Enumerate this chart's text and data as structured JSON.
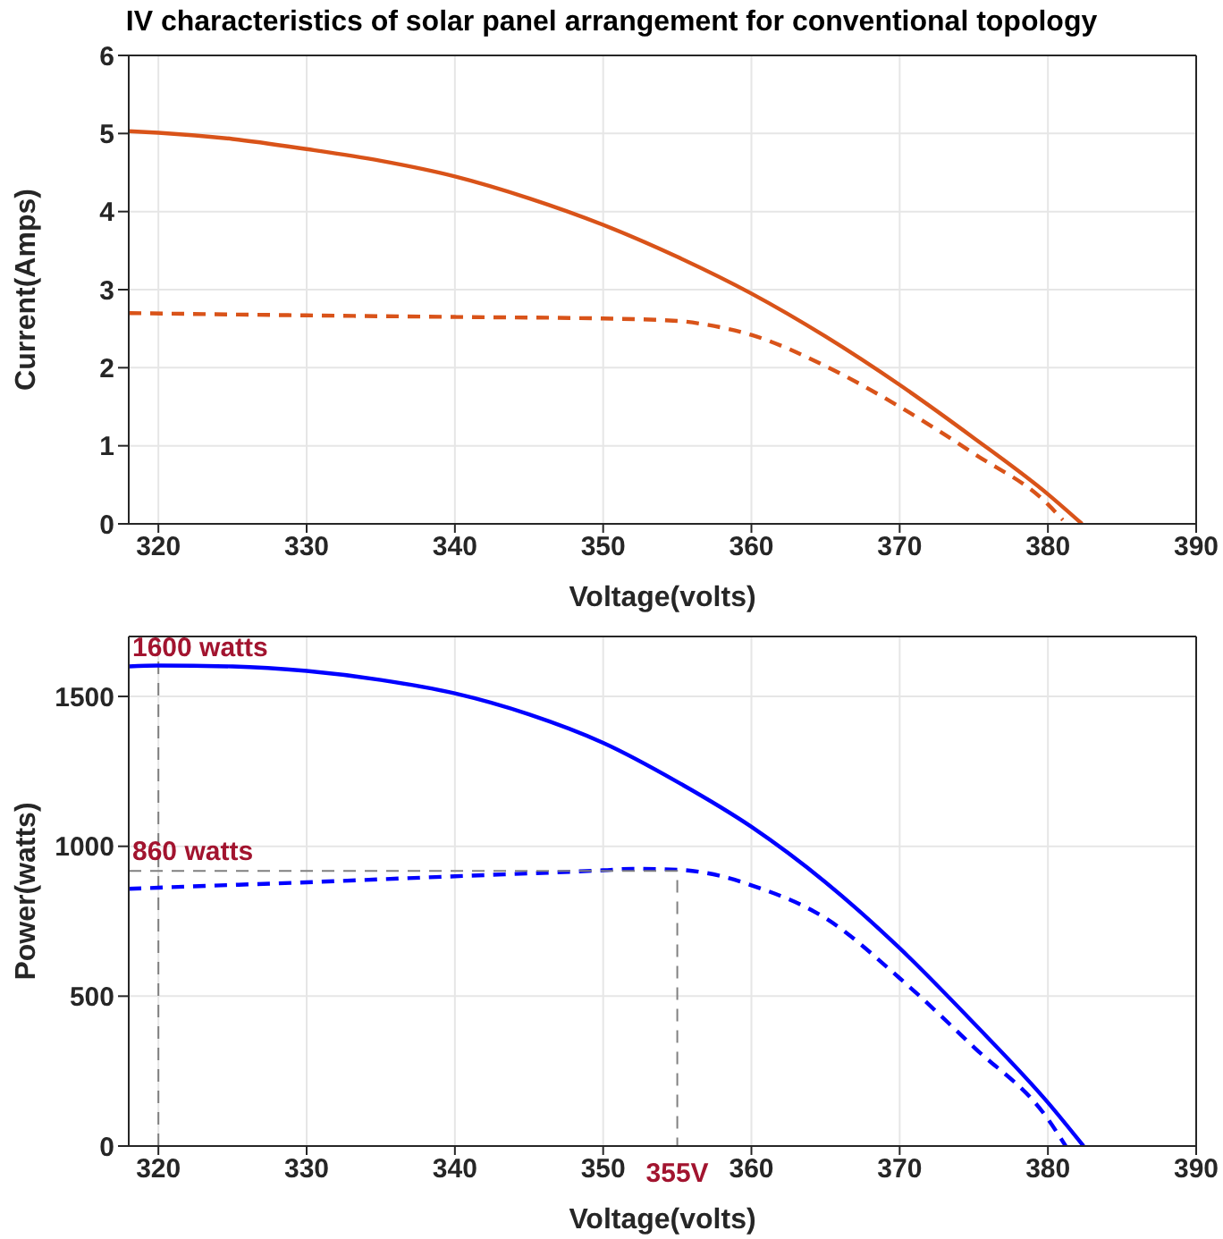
{
  "chart_data": [
    {
      "type": "line",
      "title": "IV characteristics of solar panel arrangement for conventional topology",
      "xlabel": "Voltage(volts)",
      "ylabel": "Current(Amps)",
      "xlim": [
        318,
        390
      ],
      "xticks": [
        320,
        330,
        340,
        350,
        360,
        370,
        380,
        390
      ],
      "ylim": [
        0,
        6
      ],
      "yticks": [
        0,
        1,
        2,
        3,
        4,
        5,
        6
      ],
      "grid": true,
      "series": [
        {
          "color": "#d95319",
          "line_style": "solid",
          "x": [
            318,
            320,
            325,
            330,
            335,
            340,
            345,
            350,
            355,
            360,
            365,
            370,
            375,
            380,
            382.3
          ],
          "values": [
            5.03,
            5.01,
            4.93,
            4.8,
            4.65,
            4.45,
            4.17,
            3.83,
            3.42,
            2.95,
            2.4,
            1.78,
            1.1,
            0.38,
            0
          ]
        },
        {
          "color": "#d95319",
          "line_style": "dashed",
          "x": [
            318,
            330,
            340,
            350,
            355,
            357,
            360,
            365,
            370,
            375,
            380,
            381
          ],
          "values": [
            2.7,
            2.67,
            2.65,
            2.63,
            2.6,
            2.55,
            2.42,
            2.02,
            1.5,
            0.9,
            0.25,
            0.05
          ]
        }
      ]
    },
    {
      "type": "line",
      "xlabel": "Voltage(volts)",
      "ylabel": "Power(watts)",
      "xlim": [
        318,
        390
      ],
      "xticks": [
        320,
        330,
        340,
        350,
        360,
        370,
        380,
        390
      ],
      "ylim": [
        0,
        1700
      ],
      "yticks": [
        0,
        500,
        1000,
        1500
      ],
      "grid": true,
      "series": [
        {
          "color": "#0000ff",
          "line_style": "solid",
          "x": [
            318,
            320,
            325,
            330,
            335,
            340,
            345,
            350,
            355,
            360,
            365,
            370,
            375,
            380,
            382.4
          ],
          "values": [
            1600,
            1603,
            1600,
            1585,
            1555,
            1510,
            1440,
            1345,
            1215,
            1065,
            880,
            660,
            410,
            145,
            0
          ]
        },
        {
          "color": "#0000ff",
          "line_style": "dashed",
          "x": [
            318,
            320,
            330,
            340,
            350,
            352,
            355,
            358,
            360,
            365,
            370,
            375,
            380,
            381.2
          ],
          "values": [
            858,
            862,
            880,
            900,
            920,
            925,
            922,
            900,
            870,
            760,
            560,
            330,
            90,
            0
          ]
        },
        {
          "color": "#808080",
          "line_style": "dashed",
          "x": [
            318,
            355,
            355
          ],
          "values": [
            918,
            918,
            0
          ]
        }
      ],
      "ref_lines": [
        {
          "axis": "x",
          "value": 320,
          "color": "#808080",
          "line_style": "dashed"
        }
      ],
      "annotations": [
        {
          "text": "1600 watts",
          "y": 1600
        },
        {
          "text": "860 watts",
          "y": 918
        },
        {
          "text": "355V",
          "x": 355,
          "y": 0
        }
      ]
    }
  ]
}
